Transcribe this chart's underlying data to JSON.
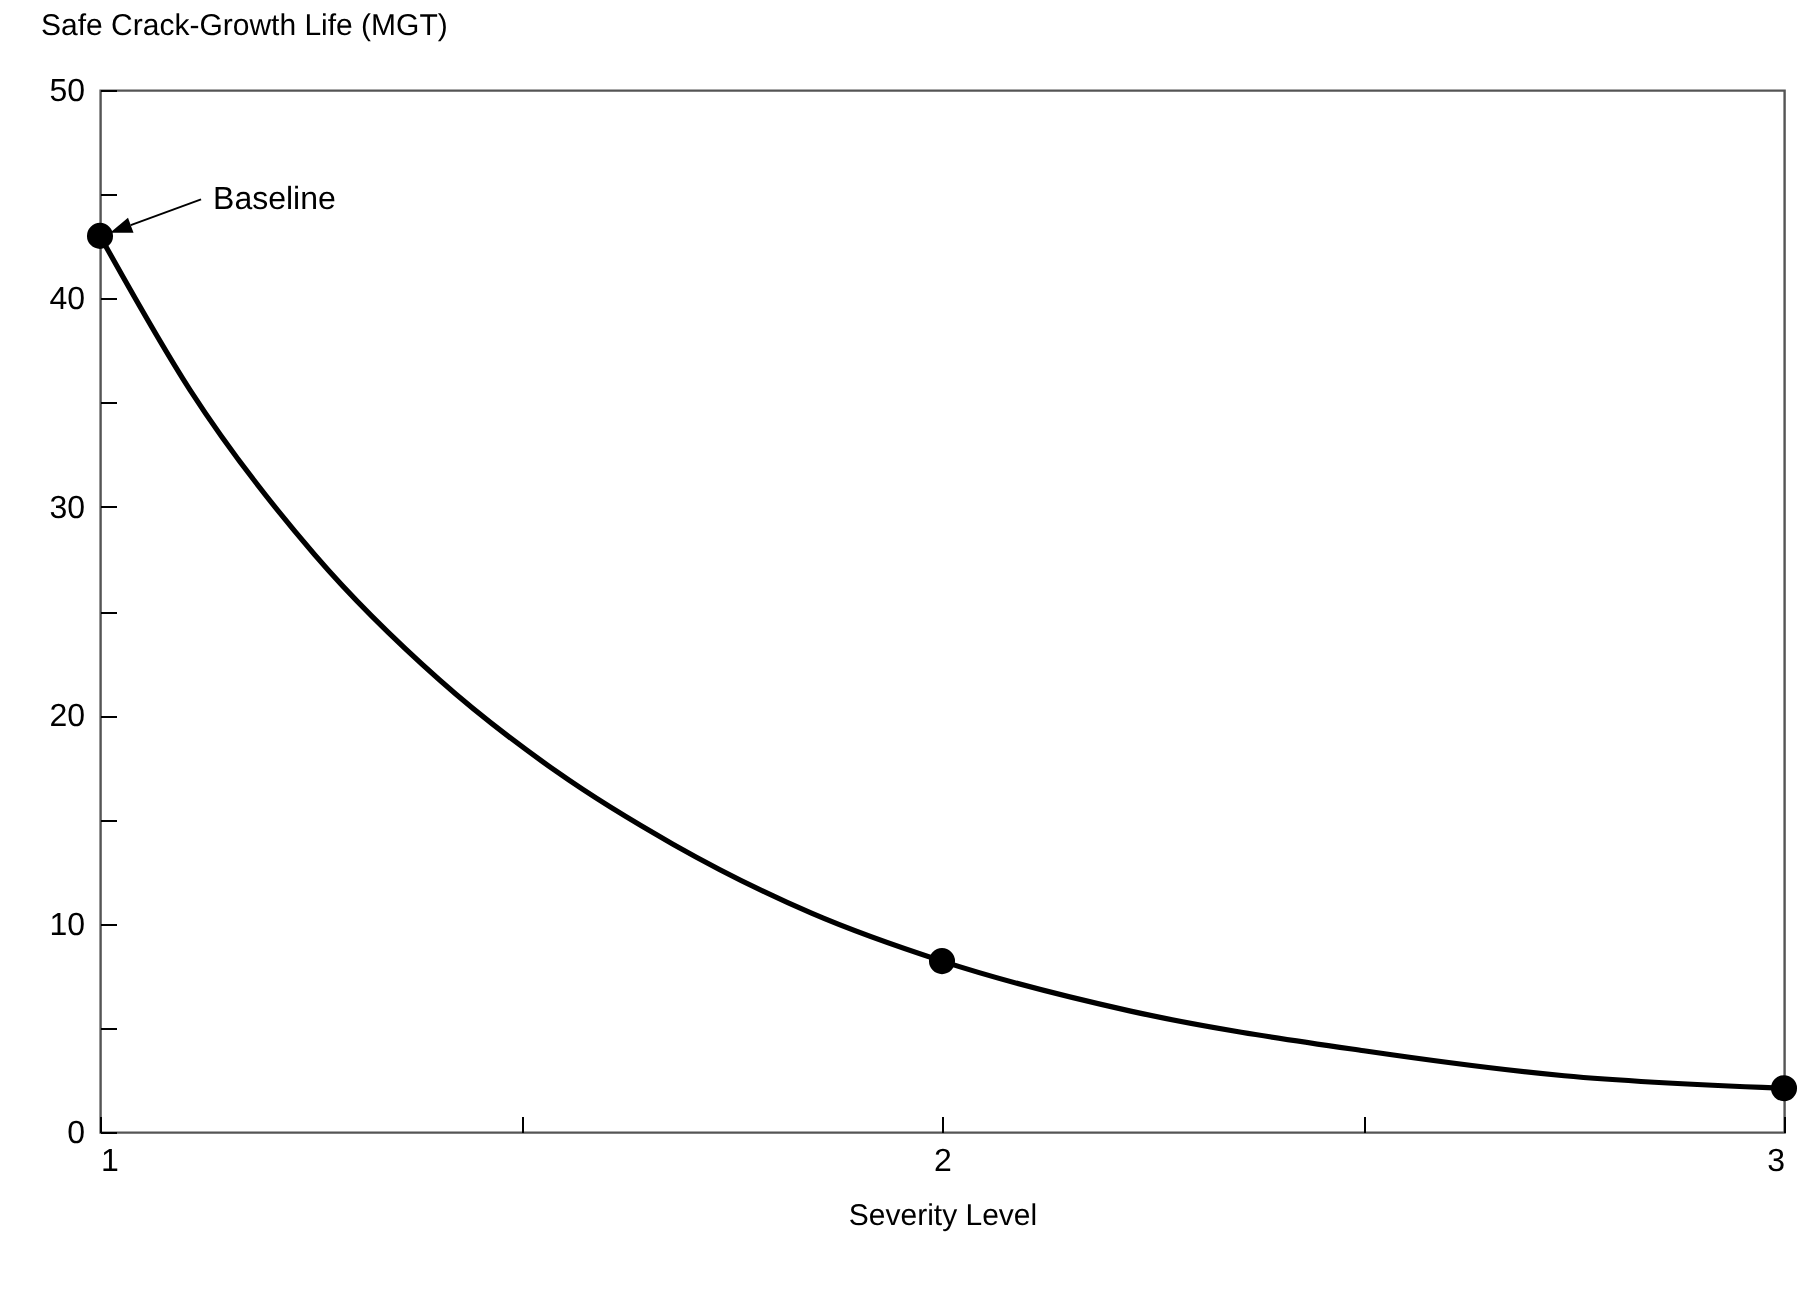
{
  "chart_data": {
    "type": "line",
    "xlabel": "Severity Level",
    "ylabel": "Safe Crack-Growth Life (MGT)",
    "xlim": [
      1,
      3
    ],
    "xticks": [
      1,
      {
        "value": 1.5,
        "label": null
      },
      2,
      {
        "value": 2.5,
        "label": null
      },
      3
    ],
    "ylim": [
      0,
      50
    ],
    "yticks": [
      0,
      {
        "value": 5,
        "label": null
      },
      10,
      {
        "value": 15,
        "label": null
      },
      20,
      {
        "value": 25,
        "label": null
      },
      30,
      {
        "value": 35,
        "label": null
      },
      40,
      {
        "value": 45,
        "label": null
      },
      50
    ],
    "grid": false,
    "series": [
      {
        "color": "#000000",
        "marker": "none",
        "x": [
          1,
          1.107,
          1.255,
          1.403,
          1.542,
          1.681,
          1.845,
          2,
          2.224,
          2.501,
          2.739,
          3
        ],
        "values": [
          43,
          35.6,
          27.7,
          21.7,
          17.3,
          13.8,
          10.5,
          8.2,
          5.8,
          3.9,
          2.7,
          2.1
        ]
      },
      {
        "type": "scatter",
        "color": "#000000",
        "marker": "circle",
        "x": [
          1,
          2,
          3
        ],
        "values": [
          43,
          8.2,
          2.1
        ]
      }
    ],
    "annotations": [
      "Baseline"
    ]
  }
}
